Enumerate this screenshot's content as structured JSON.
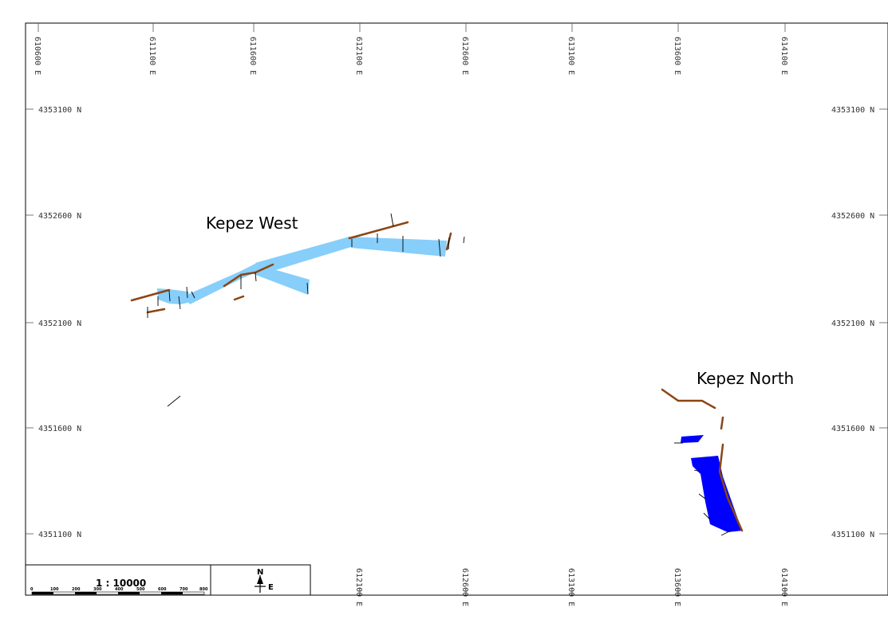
{
  "map": {
    "x_labels_top": [
      "610600 E",
      "611100 E",
      "611600 E",
      "612100 E",
      "612600 E",
      "613100 E",
      "613600 E",
      "614100 E"
    ],
    "x_labels_bottom": [
      "612100 E",
      "612600 E",
      "613100 E",
      "613600 E",
      "614100 E"
    ],
    "y_labels": [
      "4353100 N",
      "4352600 N",
      "4352100 N",
      "4351600 N",
      "4351100 N"
    ],
    "areas": {
      "west": "Kepez West",
      "north": "Kepez North"
    },
    "colors": {
      "west_fill": "#87CEFA",
      "north_fill": "#0000FF",
      "fault": "#8B4513",
      "frame": "#000000"
    }
  },
  "scale": {
    "ratio": "1 : 10000",
    "ticks": [
      "0",
      "100",
      "200",
      "300",
      "400",
      "500",
      "600",
      "700",
      "800"
    ]
  },
  "north_arrow": {
    "n": "N",
    "e": "E"
  }
}
